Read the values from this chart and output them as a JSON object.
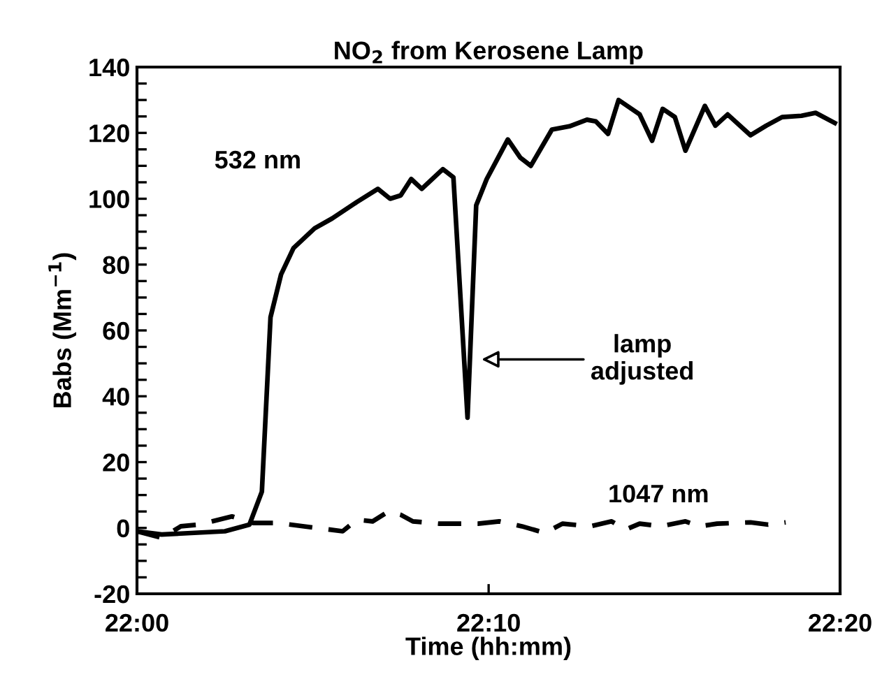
{
  "chart_data": {
    "type": "line",
    "title": "NO$_{2}$ from Kerosene Lamp",
    "xlabel": "Time (hh:mm)",
    "ylabel": "Babs (Mm$^{−1}$)",
    "xlim": [
      22,
      22.3333
    ],
    "xticks": [
      {
        "value": 22,
        "label": "22:00"
      },
      {
        "value": 22.1667,
        "label": "22:10"
      },
      {
        "value": 22.3333,
        "label": "22:20"
      }
    ],
    "ylim": [
      -20,
      140
    ],
    "yticks": [
      -20,
      {
        "value": -15,
        "label": null
      },
      {
        "value": -10,
        "label": null
      },
      {
        "value": -5,
        "label": null
      },
      0,
      {
        "value": 5,
        "label": null
      },
      {
        "value": 10,
        "label": null
      },
      {
        "value": 15,
        "label": null
      },
      20,
      {
        "value": 25,
        "label": null
      },
      {
        "value": 30,
        "label": null
      },
      {
        "value": 35,
        "label": null
      },
      40,
      {
        "value": 45,
        "label": null
      },
      {
        "value": 50,
        "label": null
      },
      {
        "value": 55,
        "label": null
      },
      60,
      {
        "value": 65,
        "label": null
      },
      {
        "value": 70,
        "label": null
      },
      {
        "value": 75,
        "label": null
      },
      80,
      {
        "value": 85,
        "label": null
      },
      {
        "value": 90,
        "label": null
      },
      {
        "value": 95,
        "label": null
      },
      100,
      {
        "value": 105,
        "label": null
      },
      {
        "value": 110,
        "label": null
      },
      {
        "value": 115,
        "label": null
      },
      120,
      {
        "value": 125,
        "label": null
      },
      {
        "value": 130,
        "label": null
      },
      {
        "value": 135,
        "label": null
      },
      140
    ],
    "grid": false,
    "legend": false,
    "marker": "none",
    "series": [
      {
        "name": "532 nm",
        "color": "#000000",
        "line_style": "solid",
        "x": [
          22,
          22.0117,
          22.0417,
          22.0533,
          22.0592,
          22.0633,
          22.0683,
          22.0742,
          22.0842,
          22.0925,
          22.1042,
          22.1142,
          22.12,
          22.125,
          22.13,
          22.135,
          22.145,
          22.15,
          22.1567,
          22.1608,
          22.1658,
          22.1758,
          22.1817,
          22.1867,
          22.1967,
          22.205,
          22.2133,
          22.2175,
          22.2233,
          22.2283,
          22.2383,
          22.2442,
          22.2492,
          22.255,
          22.26,
          22.2692,
          22.2742,
          22.28,
          22.2908,
          22.2983,
          22.3058,
          22.315,
          22.3217,
          22.3308
        ],
        "values": [
          -1,
          -2,
          -1,
          1,
          11,
          64,
          77,
          85,
          91,
          94,
          99,
          103,
          100,
          101,
          106,
          103,
          109,
          106.5,
          33.5,
          98,
          106,
          118,
          112.5,
          110,
          121,
          122,
          124,
          123.5,
          119.7,
          130,
          125.6,
          117.6,
          127.3,
          124.8,
          114.6,
          128.2,
          122.2,
          125.6,
          119.3,
          122.2,
          124.8,
          125.2,
          126.1,
          123
        ]
      },
      {
        "name": "1047 nm",
        "color": "#000000",
        "line_style": "dashed",
        "x": [
          22,
          22.0117,
          22.0208,
          22.0292,
          22.045,
          22.055,
          22.0667,
          22.085,
          22.0975,
          22.1042,
          22.1117,
          22.1192,
          22.125,
          22.1308,
          22.1433,
          22.1617,
          22.1717,
          22.1825,
          22.1933,
          22.2017,
          22.215,
          22.225,
          22.2317,
          22.2383,
          22.2483,
          22.26,
          22.2667,
          22.275,
          22.2908,
          22.2992,
          22.3075
        ],
        "values": [
          -1,
          -3,
          0.5,
          1,
          3.5,
          1.5,
          1.5,
          0,
          -1,
          2.5,
          2,
          5,
          4,
          2,
          1.3,
          1.3,
          2,
          0.5,
          -1.5,
          1.3,
          0.5,
          2,
          -0.5,
          1.3,
          0.5,
          2,
          0.5,
          1.3,
          1.7,
          1,
          1.7
        ]
      }
    ],
    "annotations": [
      "lamp\nadjusted"
    ]
  }
}
